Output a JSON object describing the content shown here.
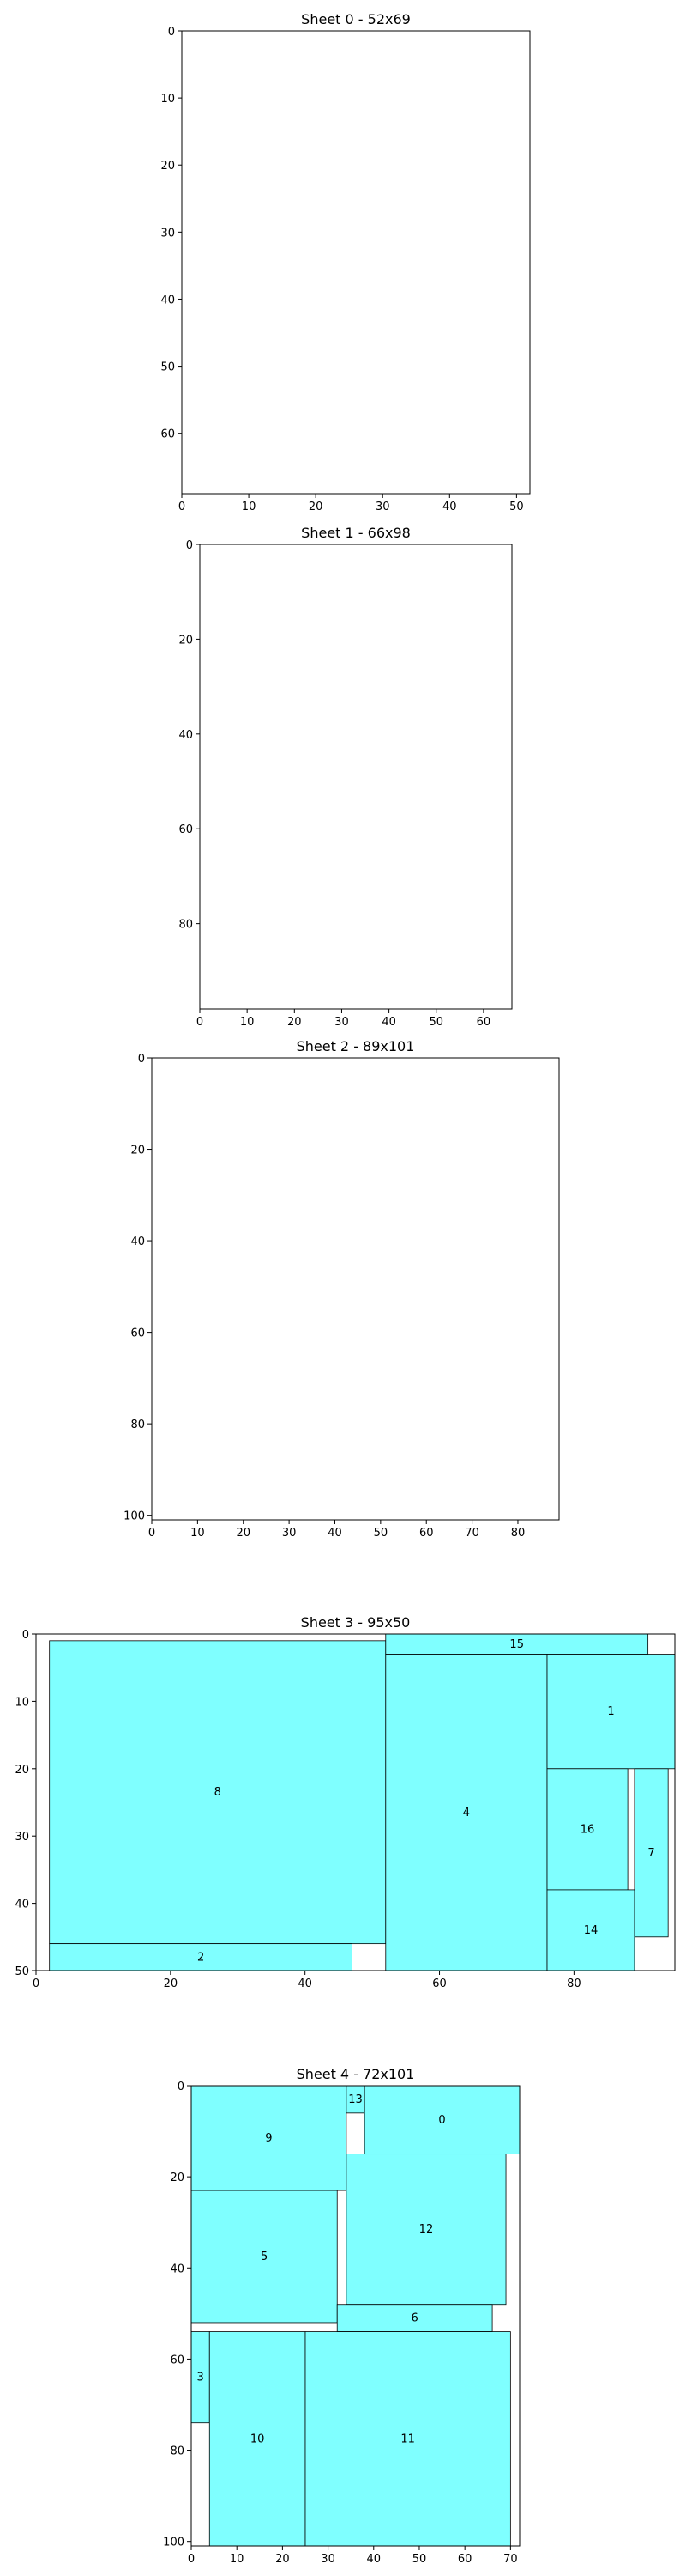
{
  "chart_data": [
    {
      "type": "table",
      "title": "Sheet 0 - 52x69",
      "xlim": [
        0,
        52
      ],
      "ylim": [
        0,
        69
      ],
      "y_inverted": true,
      "x_ticks": [
        0,
        10,
        20,
        30,
        40,
        50
      ],
      "y_ticks": [
        0,
        10,
        20,
        30,
        40,
        50,
        60
      ],
      "fill_color": "#7fffff",
      "pieces": []
    },
    {
      "type": "table",
      "title": "Sheet 1 - 66x98",
      "xlim": [
        0,
        66
      ],
      "ylim": [
        0,
        98
      ],
      "y_inverted": true,
      "x_ticks": [
        0,
        10,
        20,
        30,
        40,
        50,
        60
      ],
      "y_ticks": [
        0,
        20,
        40,
        60,
        80
      ],
      "fill_color": "#7fffff",
      "pieces": []
    },
    {
      "type": "table",
      "title": "Sheet 2 - 89x101",
      "xlim": [
        0,
        89
      ],
      "ylim": [
        0,
        101
      ],
      "y_inverted": true,
      "x_ticks": [
        0,
        10,
        20,
        30,
        40,
        50,
        60,
        70,
        80
      ],
      "y_ticks": [
        0,
        20,
        40,
        60,
        80,
        100
      ],
      "fill_color": "#7fffff",
      "pieces": []
    },
    {
      "type": "table",
      "title": "Sheet 3 - 95x50",
      "xlim": [
        0,
        95
      ],
      "ylim": [
        0,
        50
      ],
      "y_inverted": true,
      "x_ticks": [
        0,
        20,
        40,
        60,
        80
      ],
      "y_ticks": [
        0,
        10,
        20,
        30,
        40,
        50
      ],
      "fill_color": "#7fffff",
      "pieces": [
        {
          "id": "8",
          "x": 2,
          "y": 1,
          "w": 50,
          "h": 45
        },
        {
          "id": "2",
          "x": 2,
          "y": 46,
          "w": 45,
          "h": 4
        },
        {
          "id": "15",
          "x": 52,
          "y": 0,
          "w": 39,
          "h": 3
        },
        {
          "id": "4",
          "x": 52,
          "y": 3,
          "w": 24,
          "h": 47
        },
        {
          "id": "1",
          "x": 76,
          "y": 3,
          "w": 19,
          "h": 17
        },
        {
          "id": "16",
          "x": 76,
          "y": 20,
          "w": 12,
          "h": 18
        },
        {
          "id": "7",
          "x": 89,
          "y": 20,
          "w": 5,
          "h": 25
        },
        {
          "id": "14",
          "x": 76,
          "y": 38,
          "w": 13,
          "h": 12
        }
      ]
    },
    {
      "type": "table",
      "title": "Sheet 4 - 72x101",
      "xlim": [
        0,
        72
      ],
      "ylim": [
        0,
        101
      ],
      "y_inverted": true,
      "x_ticks": [
        0,
        10,
        20,
        30,
        40,
        50,
        60,
        70
      ],
      "y_ticks": [
        0,
        20,
        40,
        60,
        80,
        100
      ],
      "fill_color": "#7fffff",
      "pieces": [
        {
          "id": "9",
          "x": 0,
          "y": 0,
          "w": 34,
          "h": 23
        },
        {
          "id": "13",
          "x": 34,
          "y": 0,
          "w": 4,
          "h": 6
        },
        {
          "id": "0",
          "x": 38,
          "y": 0,
          "w": 34,
          "h": 15
        },
        {
          "id": "12",
          "x": 34,
          "y": 15,
          "w": 35,
          "h": 33
        },
        {
          "id": "5",
          "x": 0,
          "y": 23,
          "w": 32,
          "h": 29
        },
        {
          "id": "6",
          "x": 32,
          "y": 48,
          "w": 34,
          "h": 6
        },
        {
          "id": "3",
          "x": 0,
          "y": 54,
          "w": 4,
          "h": 20
        },
        {
          "id": "10",
          "x": 4,
          "y": 54,
          "w": 21,
          "h": 47
        },
        {
          "id": "11",
          "x": 25,
          "y": 54,
          "w": 45,
          "h": 47
        }
      ]
    }
  ]
}
